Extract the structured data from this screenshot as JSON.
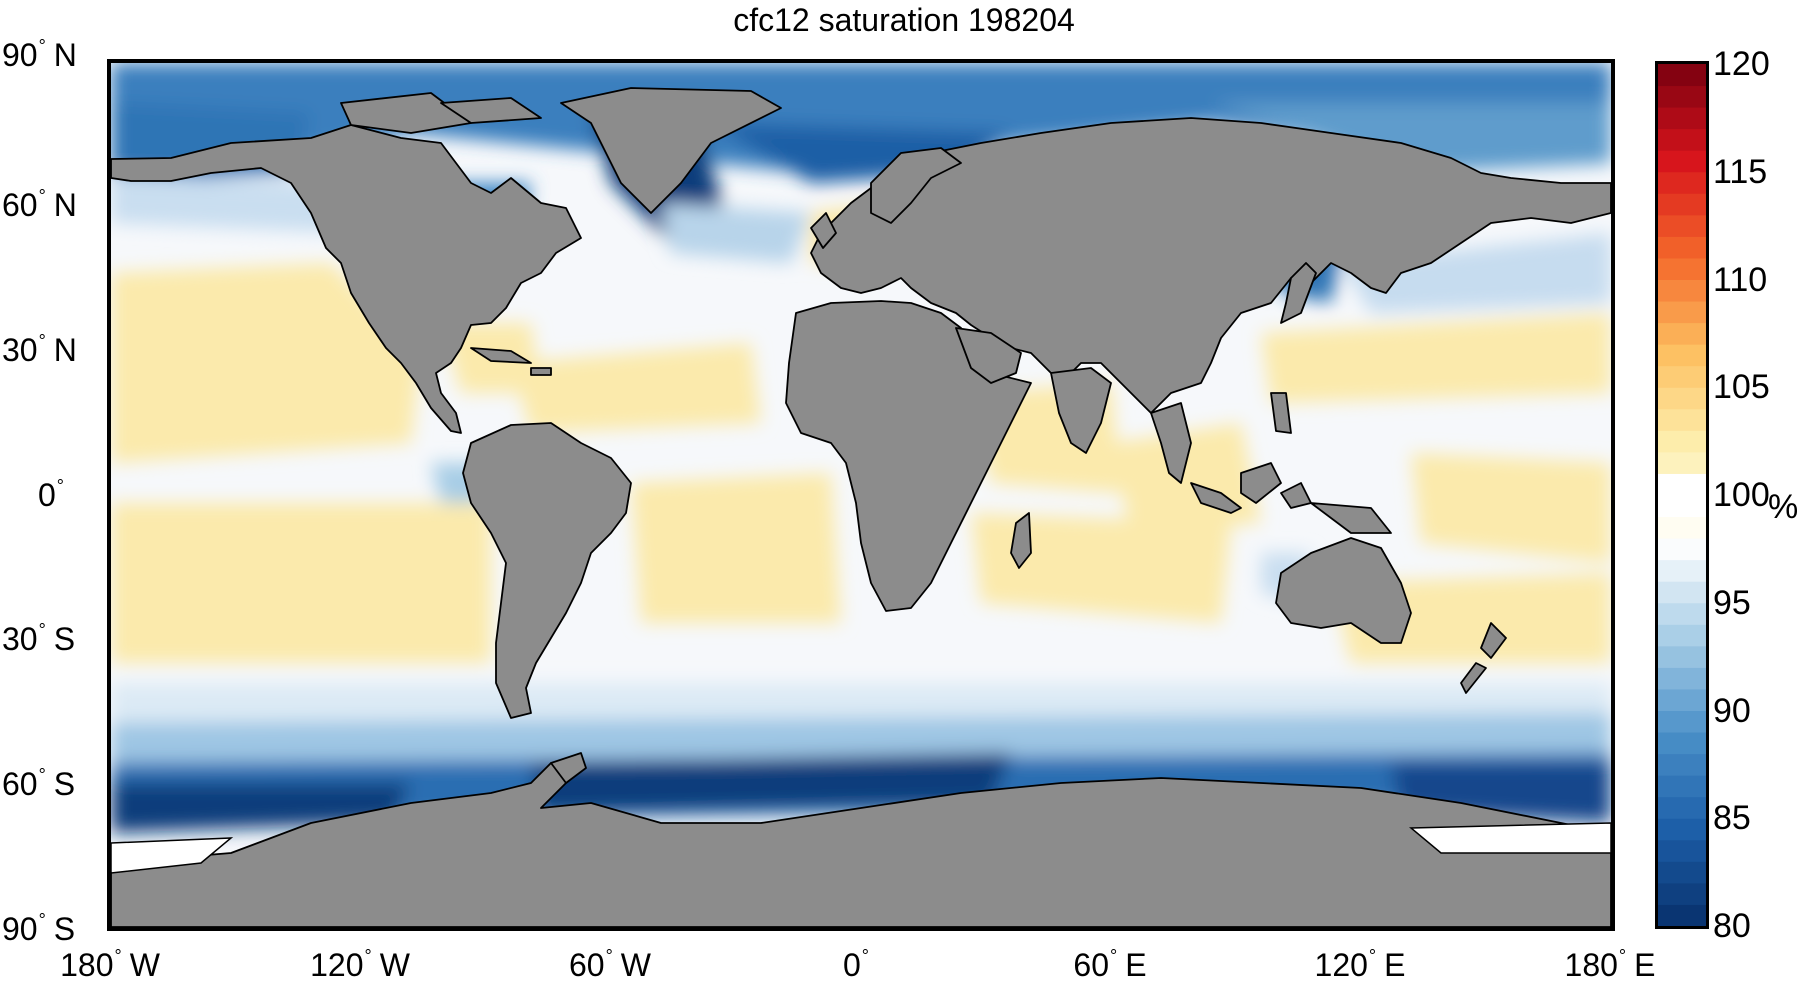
{
  "title": "cfc12 saturation 198204",
  "latitude_labels": [
    {
      "value": "90",
      "hemisphere": "N"
    },
    {
      "value": "60",
      "hemisphere": "N"
    },
    {
      "value": "30",
      "hemisphere": "N"
    },
    {
      "value": "0",
      "hemisphere": ""
    },
    {
      "value": "30",
      "hemisphere": "S"
    },
    {
      "value": "60",
      "hemisphere": "S"
    },
    {
      "value": "90",
      "hemisphere": "S"
    }
  ],
  "longitude_labels": [
    {
      "value": "180",
      "hemisphere": "W"
    },
    {
      "value": "120",
      "hemisphere": "W"
    },
    {
      "value": "60",
      "hemisphere": "W"
    },
    {
      "value": "0",
      "hemisphere": ""
    },
    {
      "value": "60",
      "hemisphere": "E"
    },
    {
      "value": "120",
      "hemisphere": "E"
    },
    {
      "value": "180",
      "hemisphere": "E"
    }
  ],
  "colorbar": {
    "ticks": [
      "120",
      "115",
      "110",
      "105",
      "100",
      "95",
      "90",
      "85",
      "80"
    ],
    "unit": "%",
    "min": 80,
    "max": 120,
    "colors": [
      "#08306b",
      "#1c5ea8",
      "#4a90c8",
      "#a7cde6",
      "#ffffff",
      "#fdf0b0",
      "#fdbf60",
      "#f4672a",
      "#d7141c",
      "#7a0010"
    ]
  },
  "colors": {
    "land": "#8c8c8c",
    "coastline": "#000000",
    "near_saturation": "#f6f8fb",
    "supersaturated": "#fbeaac",
    "undersaturated_weak": "#c9def0",
    "undersaturated_strong": "#0b3d7c",
    "sea_ice": "#ffffff"
  },
  "projection": "equirectangular"
}
